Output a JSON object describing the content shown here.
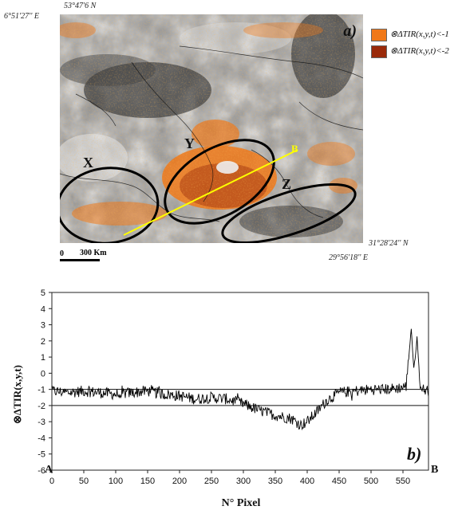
{
  "map": {
    "panel_label": "a)",
    "coord_top_lat": "53°47'6 N",
    "coord_top_lon": "6°51'27'' E",
    "coord_bottom_lat": "31°28'24'' N",
    "coord_bottom_lon": "29°56'18'' E",
    "scale_zero": "0",
    "scale_label": "300 Km",
    "regions": [
      "X",
      "Y",
      "Z"
    ],
    "transect_end": "B",
    "legend": [
      {
        "label": "⊗ΔTIR(x,y,t)<-1",
        "color": "#f07818"
      },
      {
        "label": "⊗ΔTIR(x,y,t)<-2",
        "color": "#9a2a0a"
      }
    ]
  },
  "chart_data": {
    "type": "line",
    "panel_label": "b)",
    "xlabel": "N° Pixel",
    "ylabel": "⊗ΔTIR(x,y,t)",
    "xlim": [
      0,
      590
    ],
    "ylim": [
      -6,
      5
    ],
    "xticks": [
      "0",
      "50",
      "100",
      "150",
      "200",
      "250",
      "300",
      "350",
      "400",
      "450",
      "500",
      "550"
    ],
    "yticks": [
      "5",
      "4",
      "3",
      "2",
      "1",
      "0",
      "-1",
      "-2",
      "-3",
      "-4",
      "-5",
      "-6"
    ],
    "reference_lines": [
      -1,
      -2
    ],
    "endpoint_labels": [
      "A",
      "B"
    ],
    "series": [
      {
        "x": [
          0,
          25,
          50,
          75,
          100,
          125,
          150,
          175,
          200,
          225,
          250,
          275,
          300,
          325,
          350,
          375,
          390,
          400,
          415,
          430,
          450,
          475,
          500,
          525,
          545,
          555,
          563,
          567,
          572,
          577,
          582,
          590
        ],
        "values": [
          -1.1,
          -1.2,
          -1.1,
          -1.2,
          -1.3,
          -1.2,
          -1.1,
          -1.3,
          -1.4,
          -1.6,
          -1.5,
          -1.6,
          -1.9,
          -2.3,
          -2.6,
          -2.8,
          -3.2,
          -3.0,
          -2.4,
          -1.7,
          -1.2,
          -1.1,
          -1.0,
          -1.0,
          -0.9,
          -0.8,
          2.8,
          0.2,
          2.2,
          -0.9,
          -1.0,
          -1.1
        ]
      }
    ]
  }
}
